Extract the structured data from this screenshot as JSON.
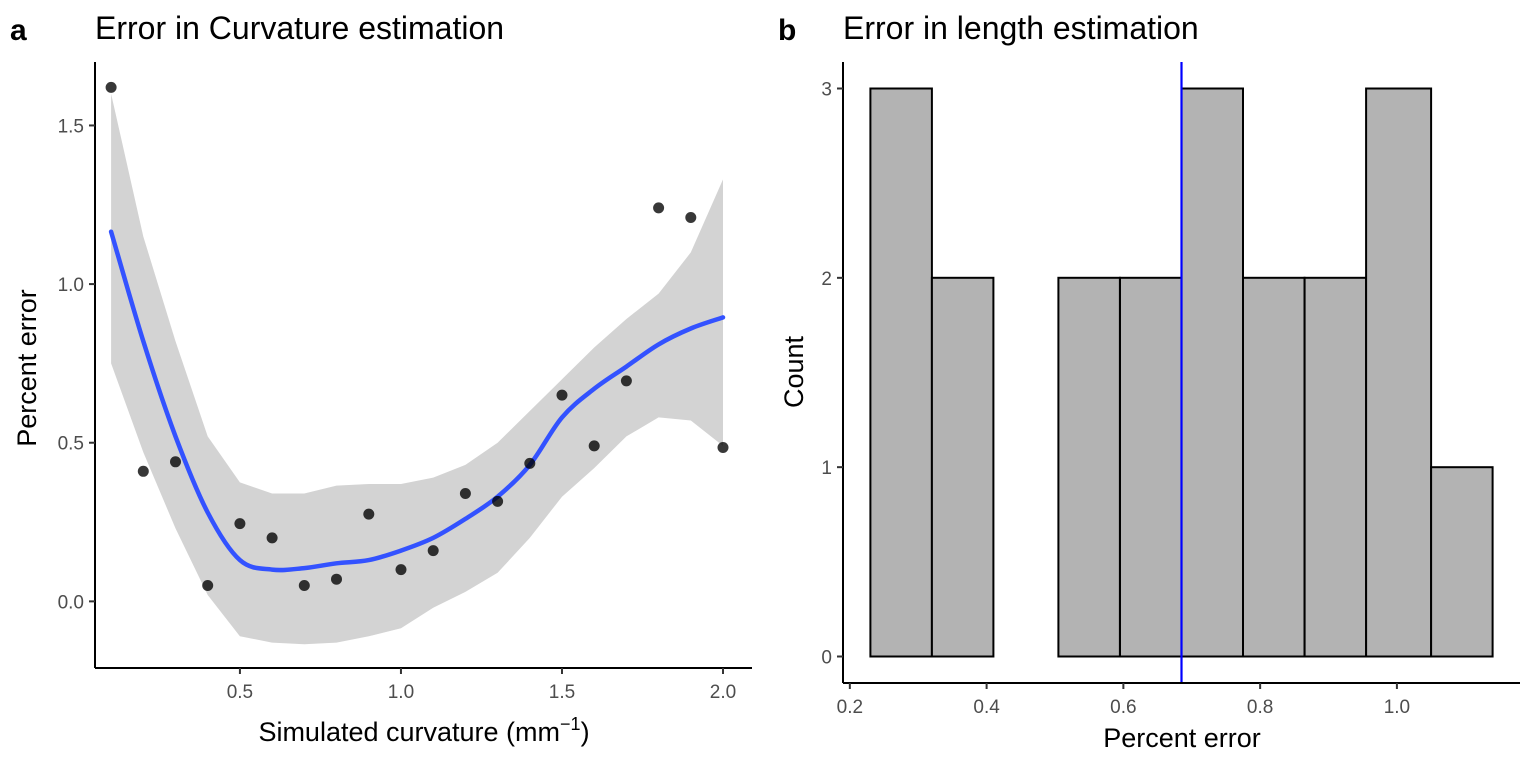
{
  "chart_data": [
    {
      "panel": "a",
      "type": "scatter",
      "title": "Error in Curvature estimation",
      "xlabel": "Simulated curvature (mm",
      "xlabel_sup": "−1",
      "xlabel_end": ")",
      "ylabel": "Percent error",
      "xlim": [
        0.05,
        2.09
      ],
      "ylim": [
        -0.21,
        1.7
      ],
      "xticks": [
        0.5,
        1.0,
        1.5,
        2.0
      ],
      "xtick_labels": [
        "0.5",
        "1.0",
        "1.5",
        "2.0"
      ],
      "yticks": [
        0.0,
        0.5,
        1.0,
        1.5
      ],
      "ytick_labels": [
        "0.0",
        "0.5",
        "1.0",
        "1.5"
      ],
      "grid": false,
      "points": {
        "x": [
          0.1,
          0.2,
          0.3,
          0.4,
          0.5,
          0.6,
          0.7,
          0.8,
          0.9,
          1.0,
          1.1,
          1.2,
          1.3,
          1.4,
          1.5,
          1.6,
          1.7,
          1.8,
          1.9,
          2.0
        ],
        "y": [
          1.62,
          0.41,
          0.44,
          0.05,
          0.245,
          0.2,
          0.05,
          0.07,
          0.275,
          0.1,
          0.16,
          0.34,
          0.315,
          0.435,
          0.65,
          0.49,
          0.695,
          1.24,
          1.21,
          0.485
        ],
        "color": "#000000"
      },
      "smooth": {
        "color": "#3352ff",
        "ribbon_color": "#d3d3d3",
        "x": [
          0.1,
          0.2,
          0.3,
          0.4,
          0.5,
          0.6,
          0.7,
          0.8,
          0.9,
          1.0,
          1.1,
          1.2,
          1.3,
          1.4,
          1.5,
          1.6,
          1.7,
          1.8,
          1.9,
          2.0
        ],
        "fit": [
          1.165,
          0.82,
          0.52,
          0.28,
          0.13,
          0.1,
          0.105,
          0.12,
          0.13,
          0.16,
          0.2,
          0.26,
          0.33,
          0.43,
          0.58,
          0.67,
          0.74,
          0.81,
          0.86,
          0.895
        ],
        "lower": [
          0.75,
          0.47,
          0.23,
          0.02,
          -0.11,
          -0.13,
          -0.135,
          -0.13,
          -0.11,
          -0.085,
          -0.02,
          0.03,
          0.09,
          0.2,
          0.33,
          0.42,
          0.52,
          0.58,
          0.57,
          0.49
        ],
        "upper": [
          1.6,
          1.15,
          0.82,
          0.52,
          0.375,
          0.34,
          0.34,
          0.365,
          0.37,
          0.37,
          0.39,
          0.43,
          0.5,
          0.6,
          0.7,
          0.8,
          0.89,
          0.97,
          1.1,
          1.33
        ]
      }
    },
    {
      "panel": "b",
      "type": "bar",
      "title": "Error in length estimation",
      "xlabel": "Percent error",
      "ylabel": "Count",
      "xlim": [
        0.19,
        1.18
      ],
      "ylim": [
        -0.14,
        3.14
      ],
      "xticks": [
        0.2,
        0.4,
        0.6,
        0.8,
        1.0
      ],
      "xtick_labels": [
        "0.2",
        "0.4",
        "0.6",
        "0.8",
        "1.0"
      ],
      "yticks": [
        0,
        1,
        2,
        3
      ],
      "ytick_labels": [
        "0",
        "1",
        "2",
        "3"
      ],
      "grid": false,
      "bar_fill": "#b3b3b3",
      "bar_stroke": "#000000",
      "bins": [
        {
          "start": 0.23,
          "end": 0.32,
          "count": 3
        },
        {
          "start": 0.32,
          "end": 0.41,
          "count": 2
        },
        {
          "start": 0.41,
          "end": 0.505,
          "count": 0
        },
        {
          "start": 0.505,
          "end": 0.595,
          "count": 2
        },
        {
          "start": 0.595,
          "end": 0.685,
          "count": 2
        },
        {
          "start": 0.685,
          "end": 0.775,
          "count": 3
        },
        {
          "start": 0.775,
          "end": 0.865,
          "count": 2
        },
        {
          "start": 0.865,
          "end": 0.955,
          "count": 2
        },
        {
          "start": 0.955,
          "end": 1.05,
          "count": 3
        },
        {
          "start": 1.05,
          "end": 1.14,
          "count": 1
        }
      ],
      "vline": {
        "x": 0.685,
        "color": "#0000ff"
      }
    }
  ]
}
